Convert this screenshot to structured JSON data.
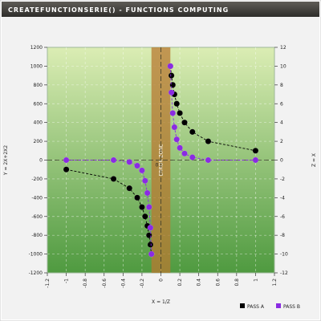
{
  "chart_data": {
    "type": "scatter",
    "title": "CREATEFUNCTIONSERIE() - FUNCTIONS COMPUTING",
    "xlabel": "X = 1/Z",
    "ylabel_left": "Y = 2X+2X2",
    "ylabel_right": "Z = X",
    "xlim": [
      -1.2,
      1.2
    ],
    "ylim_left": [
      -1200,
      1200
    ],
    "ylim_right": [
      -12,
      12
    ],
    "x_ticks": [
      -1.2,
      -1,
      -0.8,
      -0.6,
      -0.4,
      -0.2,
      0,
      0.2,
      0.4,
      0.6,
      0.8,
      1,
      1.2
    ],
    "y_ticks_left": [
      -1200,
      -1000,
      -800,
      -600,
      -400,
      -200,
      0,
      200,
      400,
      600,
      800,
      1000,
      1200
    ],
    "y_ticks_right": [
      -12,
      -10,
      -8,
      -6,
      -4,
      -2,
      0,
      2,
      4,
      6,
      8,
      10,
      12
    ],
    "grid": true,
    "legend_position": "bottom-right",
    "error_zone": {
      "label": "ERROR ZONE",
      "x_range": [
        -0.1,
        0.1
      ]
    },
    "zero_line_label": "0",
    "colors": {
      "background_top": "#6d6a64",
      "plot_top": "#dbedb4",
      "plot_bottom": "#4f9a40",
      "error_zone": "#b87a32",
      "series_a": "#000000",
      "series_b": "#8a2be2"
    },
    "series": [
      {
        "name": "PASS A",
        "color": "#000000",
        "points": [
          [
            -1,
            -100
          ],
          [
            -0.5,
            -200
          ],
          [
            -0.333,
            -300
          ],
          [
            -0.25,
            -400
          ],
          [
            -0.2,
            -500
          ],
          [
            -0.167,
            -600
          ],
          [
            -0.143,
            -700
          ],
          [
            -0.125,
            -800
          ],
          [
            -0.111,
            -900
          ],
          [
            -0.1,
            -1000
          ],
          [
            0.1,
            1000
          ],
          [
            0.111,
            900
          ],
          [
            0.125,
            800
          ],
          [
            0.143,
            700
          ],
          [
            0.167,
            600
          ],
          [
            0.2,
            500
          ],
          [
            0.25,
            400
          ],
          [
            0.333,
            300
          ],
          [
            0.5,
            200
          ],
          [
            1,
            100
          ]
        ]
      },
      {
        "name": "PASS B",
        "color": "#8a2be2",
        "points": [
          [
            -1,
            0
          ],
          [
            -0.5,
            0
          ],
          [
            -0.333,
            -20
          ],
          [
            -0.25,
            -60
          ],
          [
            -0.2,
            -110
          ],
          [
            -0.167,
            -220
          ],
          [
            -0.143,
            -350
          ],
          [
            -0.125,
            -500
          ],
          [
            -0.111,
            -720
          ],
          [
            -0.1,
            -1000
          ],
          [
            0.1,
            1000
          ],
          [
            0.111,
            720
          ],
          [
            0.125,
            500
          ],
          [
            0.143,
            350
          ],
          [
            0.167,
            220
          ],
          [
            0.2,
            130
          ],
          [
            0.25,
            70
          ],
          [
            0.333,
            30
          ],
          [
            0.5,
            0
          ],
          [
            1,
            0
          ]
        ]
      }
    ]
  }
}
